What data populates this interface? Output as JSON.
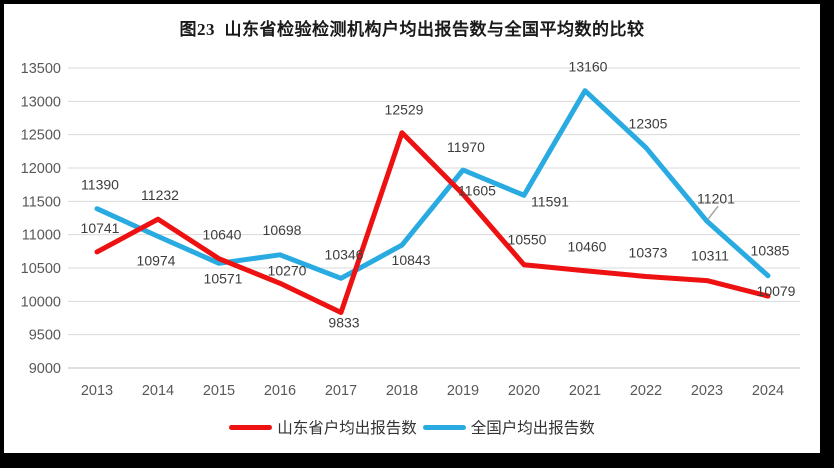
{
  "title": "图23  山东省检验检测机构户均出报告数与全国平均数的比较",
  "chart_data": {
    "type": "line",
    "title": "图23  山东省检验检测机构户均出报告数与全国平均数的比较",
    "categories": [
      "2013",
      "2014",
      "2015",
      "2016",
      "2017",
      "2018",
      "2019",
      "2020",
      "2021",
      "2022",
      "2023",
      "2024"
    ],
    "y_ticks": [
      13500,
      13000,
      12500,
      12000,
      11500,
      11000,
      10500,
      10000,
      9500,
      9000
    ],
    "ylim": [
      9000,
      13500
    ],
    "xlabel": "",
    "ylabel": "",
    "grid": "horizontal",
    "legend_position": "bottom",
    "series": [
      {
        "name": "山东省户均出报告数",
        "color": "#ee1111",
        "values": [
          10741,
          11232,
          10640,
          10270,
          9833,
          12529,
          11605,
          10550,
          10460,
          10373,
          10311,
          10079
        ],
        "label_offsets": [
          [
            3,
            -24
          ],
          [
            2,
            -24
          ],
          [
            3,
            -24
          ],
          [
            7,
            -13
          ],
          [
            3,
            10
          ],
          [
            2,
            -23
          ],
          [
            14,
            -4
          ],
          [
            3,
            -25
          ],
          [
            2,
            -24
          ],
          [
            2,
            -24
          ],
          [
            3,
            -25
          ],
          [
            8,
            -5
          ]
        ]
      },
      {
        "name": "全国户均出报告数",
        "color": "#29abe2",
        "values": [
          11390,
          10974,
          10571,
          10698,
          10346,
          10843,
          11970,
          11591,
          13160,
          12305,
          11201,
          10385
        ],
        "label_offsets": [
          [
            3,
            -24
          ],
          [
            -2,
            24
          ],
          [
            4,
            15
          ],
          [
            2,
            -25
          ],
          [
            3,
            -24
          ],
          [
            9,
            15
          ],
          [
            3,
            -23
          ],
          [
            26,
            6
          ],
          [
            3,
            -24
          ],
          [
            2,
            -24
          ],
          [
            9,
            -23
          ],
          [
            2,
            -25
          ]
        ]
      }
    ],
    "draw_order": [
      1,
      0
    ],
    "leader_line": {
      "series": 1,
      "index": 10,
      "from": [
        1,
        -2
      ],
      "to": [
        11,
        -15
      ]
    },
    "colors": {
      "grid": "#d9d9d9",
      "baseline": "#bfbfbf",
      "tick_text": "#595959",
      "data_label_text": "#3d3d3d",
      "leader": "#a6a6a6"
    }
  }
}
